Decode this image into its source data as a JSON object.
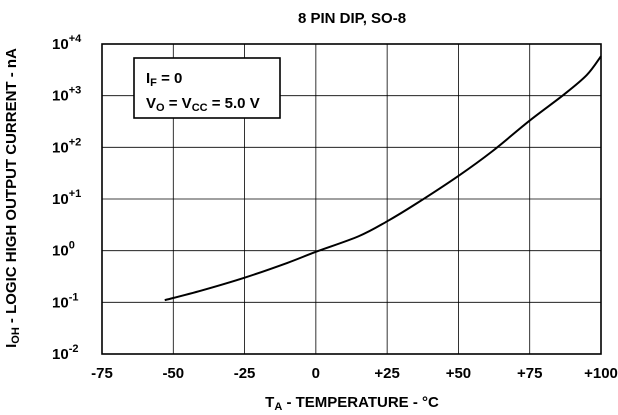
{
  "chart_data": {
    "type": "line",
    "title": "8 PIN DIP, SO-8",
    "xlabel": {
      "main": "T",
      "sub": "A",
      "rest": " - TEMPERATURE - °C"
    },
    "ylabel": {
      "main": "I",
      "sub": "OH",
      "rest": " - LOGIC HIGH OUTPUT CURRENT - nA"
    },
    "xlim": [
      -75,
      100
    ],
    "ylim": [
      0.01,
      10000
    ],
    "yscale": "log",
    "grid": true,
    "x_ticks": [
      {
        "value": -75,
        "label": "-75"
      },
      {
        "value": -50,
        "label": "-50"
      },
      {
        "value": -25,
        "label": "-25"
      },
      {
        "value": 0,
        "label": "0"
      },
      {
        "value": 25,
        "label": "+25"
      },
      {
        "value": 50,
        "label": "+50"
      },
      {
        "value": 75,
        "label": "+75"
      },
      {
        "value": 100,
        "label": "+100"
      }
    ],
    "y_ticks": [
      {
        "value": 10000,
        "base": "10",
        "exp": "+4"
      },
      {
        "value": 1000,
        "base": "10",
        "exp": "+3"
      },
      {
        "value": 100,
        "base": "10",
        "exp": "+2"
      },
      {
        "value": 10,
        "base": "10",
        "exp": "+1"
      },
      {
        "value": 1,
        "base": "10",
        "exp": "0"
      },
      {
        "value": 0.1,
        "base": "10",
        "exp": "-1"
      },
      {
        "value": 0.01,
        "base": "10",
        "exp": "-2"
      }
    ],
    "annotation": {
      "line1": {
        "a": "I",
        "a_sub": "F",
        "b": " = 0"
      },
      "line2": {
        "a": "V",
        "a_sub": "O",
        "b": " = V",
        "b_sub": "CC",
        "c": " = 5.0 V"
      }
    },
    "series": [
      {
        "points": [
          {
            "x": -53,
            "y": 0.11
          },
          {
            "x": -40,
            "y": 0.17
          },
          {
            "x": -25,
            "y": 0.3
          },
          {
            "x": -10,
            "y": 0.58
          },
          {
            "x": 0,
            "y": 0.95
          },
          {
            "x": 15,
            "y": 1.9
          },
          {
            "x": 25,
            "y": 3.7
          },
          {
            "x": 35,
            "y": 8
          },
          {
            "x": 50,
            "y": 28
          },
          {
            "x": 62,
            "y": 85
          },
          {
            "x": 75,
            "y": 330
          },
          {
            "x": 87,
            "y": 1050
          },
          {
            "x": 95,
            "y": 2500
          },
          {
            "x": 100,
            "y": 5800
          }
        ]
      }
    ]
  }
}
